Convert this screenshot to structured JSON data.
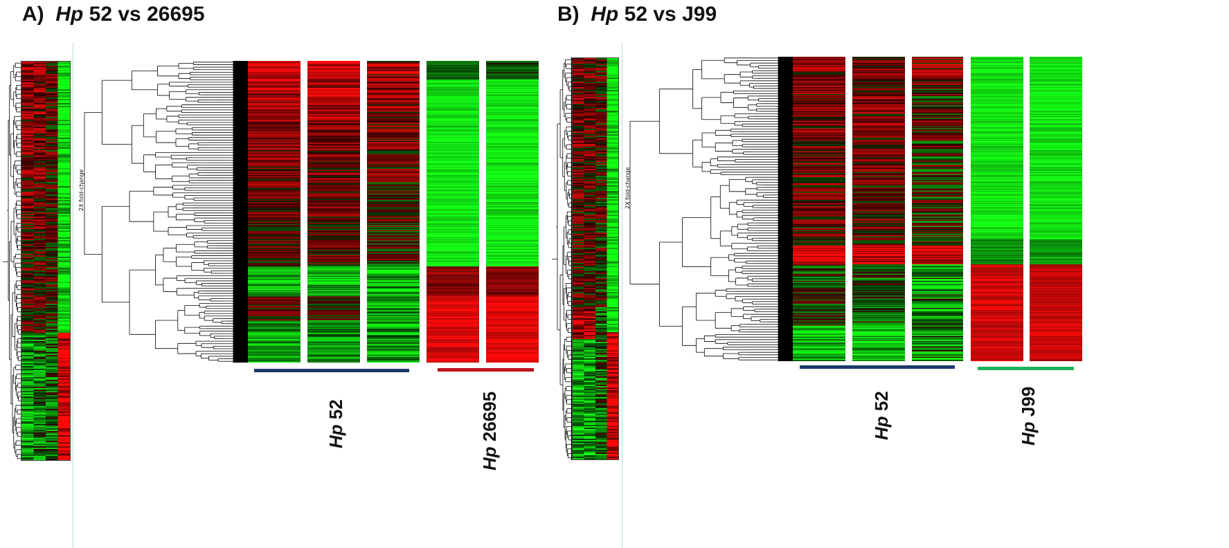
{
  "panel_a": {
    "letter": "A)",
    "species": "Hp",
    "comparison": "52 vs 26695",
    "fold_label": "2X fold-change",
    "groups": [
      {
        "species": "Hp",
        "strain": "52",
        "bar_color": "#1b3a6b"
      },
      {
        "species": "Hp",
        "strain": "26695",
        "bar_color": "#c0141b"
      }
    ]
  },
  "panel_b": {
    "letter": "B)",
    "species": "Hp",
    "comparison": "52 vs J99",
    "fold_label": "2X fold-change",
    "groups": [
      {
        "species": "Hp",
        "strain": "52",
        "bar_color": "#1b3a6b"
      },
      {
        "species": "Hp",
        "strain": "J99",
        "bar_color": "#1fb25a"
      }
    ]
  },
  "colors": {
    "up": "#ff1a1a",
    "down": "#22ff22",
    "neutral": "#000000",
    "divider": "#b8d8d4"
  }
}
